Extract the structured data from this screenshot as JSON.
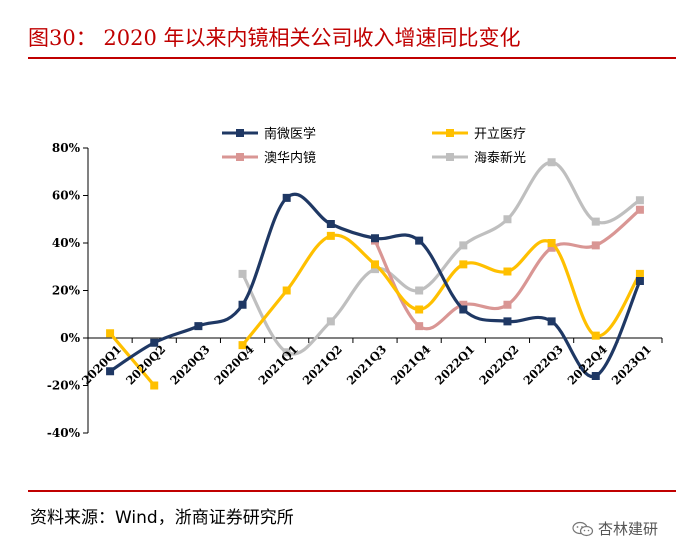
{
  "header": {
    "title": "图30： 2020 年以来内镜相关公司收入增速同比变化"
  },
  "footer": {
    "source": "资料来源：Wind，浙商证券研究所",
    "watermark": "杏林建研"
  },
  "colors": {
    "accent": "#c00000"
  },
  "chart_data": {
    "type": "line",
    "title": "",
    "xlabel": "",
    "ylabel": "",
    "ylim": [
      -40,
      80
    ],
    "yticks": [
      80,
      60,
      40,
      20,
      0,
      -20,
      -40
    ],
    "yticks_labels": [
      "80%",
      "60%",
      "40%",
      "20%",
      "0%",
      "-20%",
      "-40%"
    ],
    "categories": [
      "2020Q1",
      "2020Q2",
      "2020Q3",
      "2020Q4",
      "2021Q1",
      "2021Q2",
      "2021Q3",
      "2021Q4",
      "2022Q1",
      "2022Q2",
      "2022Q3",
      "2022Q4",
      "2023Q1"
    ],
    "legend_position": "top",
    "series": [
      {
        "name": "南微医学",
        "color": "#1f3864",
        "values": [
          -14,
          -2,
          5,
          14,
          59,
          48,
          42,
          41,
          12,
          7,
          7,
          -16,
          24
        ]
      },
      {
        "name": "开立医疗",
        "color": "#ffc000",
        "values": [
          2,
          -20,
          null,
          -3,
          20,
          43,
          31,
          12,
          31,
          28,
          40,
          1,
          27
        ]
      },
      {
        "name": "澳华内镜",
        "color": "#d99694",
        "values": [
          null,
          null,
          null,
          null,
          null,
          null,
          41,
          5,
          14,
          14,
          38,
          39,
          54
        ]
      },
      {
        "name": "海泰新光",
        "color": "#bfbfbf",
        "values": [
          null,
          null,
          null,
          27,
          -6,
          7,
          29,
          20,
          39,
          50,
          74,
          49,
          58
        ]
      }
    ]
  }
}
